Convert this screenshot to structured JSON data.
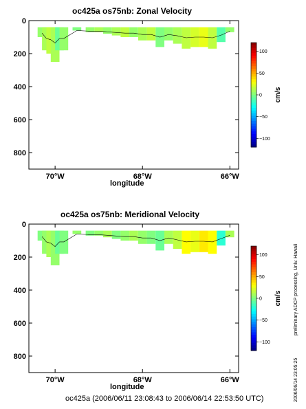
{
  "chart_data": [
    {
      "type": "heatmap",
      "title": "oc425a os75nb: Zonal Velocity",
      "xlabel": "longitude",
      "ylabel": "",
      "x_ticks": [
        "70°W",
        "68°W",
        "66°W"
      ],
      "y_ticks": [
        "0",
        "200",
        "400",
        "600",
        "800"
      ],
      "ylim": [
        900,
        0
      ],
      "xlim": [
        -70.6,
        -65.8
      ],
      "colorbar": {
        "unit": "cm/s",
        "ticks": [
          "100",
          "50",
          "0",
          "−50",
          "−100"
        ],
        "range": [
          -120,
          120
        ]
      },
      "x": [
        -70.3,
        -70.2,
        -70.1,
        -70.0,
        -69.9,
        -69.8,
        -69.5,
        -69.2,
        -69.0,
        -68.8,
        -68.6,
        -68.4,
        -68.2,
        -68.0,
        -67.8,
        -67.6,
        -67.4,
        -67.2,
        -67.0,
        -66.8,
        -66.6,
        -66.4,
        -66.2,
        -66.0
      ],
      "values": [
        5,
        10,
        15,
        10,
        -5,
        5,
        0,
        5,
        10,
        5,
        10,
        15,
        5,
        10,
        15,
        0,
        5,
        10,
        15,
        20,
        25,
        15,
        -10,
        5
      ],
      "depth_bottom": [
        100,
        180,
        200,
        250,
        180,
        180,
        60,
        70,
        70,
        80,
        90,
        100,
        100,
        120,
        120,
        160,
        120,
        140,
        170,
        160,
        160,
        170,
        130,
        70
      ]
    },
    {
      "type": "heatmap",
      "title": "oc425a os75nb: Meridional Velocity",
      "xlabel": "longitude",
      "ylabel": "",
      "x_ticks": [
        "70°W",
        "68°W",
        "66°W"
      ],
      "y_ticks": [
        "0",
        "200",
        "400",
        "600",
        "800"
      ],
      "ylim": [
        900,
        0
      ],
      "xlim": [
        -70.6,
        -65.8
      ],
      "colorbar": {
        "unit": "cm/s",
        "ticks": [
          "100",
          "50",
          "0",
          "−50",
          "−100"
        ],
        "range": [
          -120,
          120
        ]
      },
      "x": [
        -70.3,
        -70.2,
        -70.1,
        -70.0,
        -69.9,
        -69.8,
        -69.5,
        -69.2,
        -69.0,
        -68.8,
        -68.6,
        -68.4,
        -68.2,
        -68.0,
        -67.8,
        -67.6,
        -67.4,
        -67.2,
        -67.0,
        -66.8,
        -66.6,
        -66.4,
        -66.2,
        -66.0
      ],
      "values": [
        0,
        5,
        10,
        5,
        -5,
        0,
        5,
        0,
        5,
        10,
        0,
        5,
        10,
        5,
        0,
        -5,
        10,
        15,
        30,
        25,
        35,
        30,
        -20,
        10
      ],
      "depth_bottom": [
        100,
        180,
        200,
        250,
        180,
        180,
        60,
        70,
        70,
        80,
        90,
        100,
        100,
        120,
        120,
        160,
        120,
        150,
        180,
        170,
        170,
        180,
        130,
        80
      ]
    }
  ],
  "footer": "oc425a (2006/06/11 23:08:43 to 2006/06/14 22:53:50 UTC)",
  "side_note_processing": "preliminary ADCP processing,   Univ. Hawaii",
  "side_note_timestamp": "2006/06/14 23:05:25"
}
